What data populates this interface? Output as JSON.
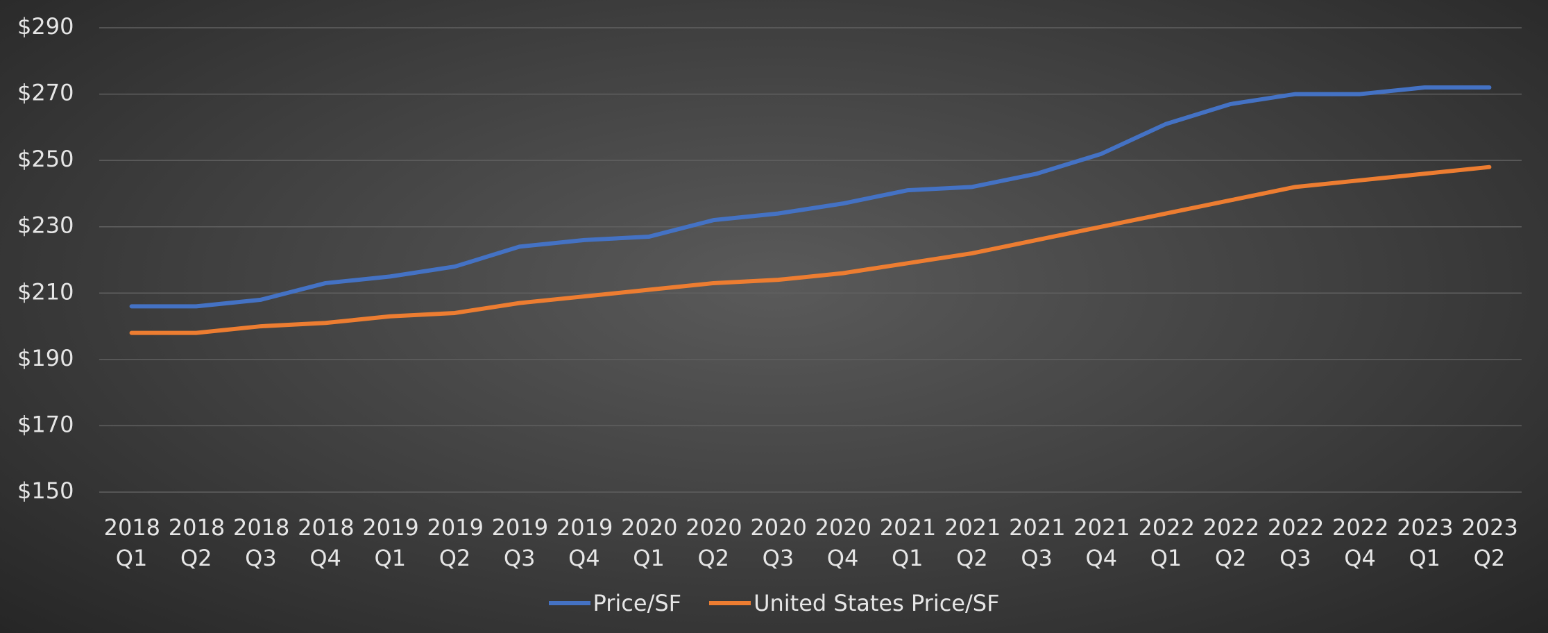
{
  "chart_data": {
    "type": "line",
    "categories": [
      "2018 Q1",
      "2018 Q2",
      "2018 Q3",
      "2018 Q4",
      "2019 Q1",
      "2019 Q2",
      "2019 Q3",
      "2019 Q4",
      "2020 Q1",
      "2020 Q2",
      "2020 Q3",
      "2020 Q4",
      "2021 Q1",
      "2021 Q2",
      "2021 Q3",
      "2021 Q4",
      "2022 Q1",
      "2022 Q2",
      "2022 Q3",
      "2022 Q4",
      "2023 Q1",
      "2023 Q2"
    ],
    "series": [
      {
        "name": "Price/SF",
        "color": "#4472c4",
        "values": [
          206,
          206,
          208,
          213,
          215,
          218,
          224,
          226,
          227,
          232,
          234,
          237,
          241,
          242,
          246,
          252,
          261,
          267,
          270,
          270,
          272,
          272
        ]
      },
      {
        "name": "United States Price/SF",
        "color": "#ed7d31",
        "values": [
          198,
          198,
          200,
          201,
          203,
          204,
          207,
          209,
          211,
          213,
          214,
          216,
          219,
          222,
          226,
          230,
          234,
          238,
          242,
          244,
          246,
          248
        ]
      }
    ],
    "ylim": [
      150,
      290
    ],
    "yticks": [
      {
        "value": 150,
        "label": "$150"
      },
      {
        "value": 170,
        "label": "$170"
      },
      {
        "value": 190,
        "label": "$190"
      },
      {
        "value": 210,
        "label": "$210"
      },
      {
        "value": 230,
        "label": "$230"
      },
      {
        "value": 250,
        "label": "$250"
      },
      {
        "value": 270,
        "label": "$270"
      },
      {
        "value": 290,
        "label": "$290"
      }
    ],
    "grid": true,
    "legend": "bottom"
  }
}
